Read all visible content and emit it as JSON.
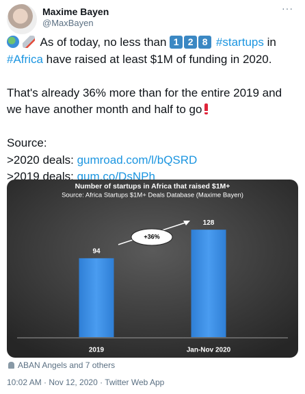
{
  "tweet": {
    "name": "Maxime Bayen",
    "handle": "@MaxBayen",
    "intro": "As of today, no less than",
    "keycaps": [
      "1",
      "2",
      "8"
    ],
    "hashtag1": "#startups",
    "in": "in",
    "hashtag2": "#Africa",
    "rest": "have raised at least $1M of funding in 2020.",
    "para2_lines": [
      "That's already 36% more than for the entire 2019 and",
      "we have another month and half to go"
    ],
    "source_label": "Source:",
    "deal_lines": [
      {
        "prefix": ">2020 deals:",
        "link": "gumroad.com/l/bQSRD"
      },
      {
        "prefix": ">2019 deals:",
        "link": "gum.co/DsNPh"
      }
    ],
    "likes": "ABAN Angels and 7 others",
    "footer": "10:02 AM · Nov 12, 2020 · Twitter Web App"
  },
  "chart_data": {
    "type": "bar",
    "title": "Number of startups in Africa that raised $1M+",
    "subtitle": "Source: Africa Startups $1M+ Deals Database (Maxime Bayen)",
    "categories": [
      "2019",
      "Jan-Nov 2020"
    ],
    "values": [
      94,
      128
    ],
    "color": "#3d8fe3",
    "annotation": "+36%"
  }
}
